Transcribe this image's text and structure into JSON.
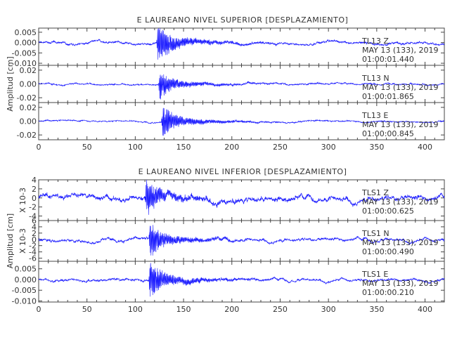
{
  "chart_data": [
    {
      "type": "line",
      "title": "E LAUREANO NIVEL SUPERIOR [DESPLAZAMIENTO]",
      "ylabel": "Amplitud [cm]",
      "xlim": [
        0,
        420
      ],
      "xticks": [
        "0",
        "50",
        "100",
        "150",
        "200",
        "250",
        "300",
        "350",
        "400"
      ],
      "series_color": "#1a1aff",
      "panels": [
        {
          "channel": "TL13  Z",
          "date": "MAY 13 (133), 2019",
          "time": "01:00:01.440",
          "ylim": [
            -0.011,
            0.007
          ],
          "yticks": [
            "0.005",
            "0.000",
            "-0.005",
            "-0.010"
          ],
          "ytick_values": [
            0.005,
            0.0,
            -0.005,
            -0.01
          ],
          "event_onset": 122,
          "peak_amplitude": 0.0095,
          "noise_amplitude": 0.0006
        },
        {
          "channel": "TL13  N",
          "date": "MAY 13 (133), 2019",
          "time": "01:00:01.865",
          "ylim": [
            -0.027,
            0.027
          ],
          "yticks": [
            "0.02",
            "0.00",
            "-0.02"
          ],
          "ytick_values": [
            0.02,
            0.0,
            -0.02
          ],
          "event_onset": 124,
          "peak_amplitude": 0.02,
          "noise_amplitude": 0.0012
        },
        {
          "channel": "TL13  E",
          "date": "MAY 13 (133), 2019",
          "time": "01:00:00.845",
          "ylim": [
            -0.027,
            0.027
          ],
          "yticks": [
            "0.02",
            "0.00",
            "-0.02"
          ],
          "ytick_values": [
            0.02,
            0.0,
            -0.02
          ],
          "event_onset": 127,
          "peak_amplitude": 0.024,
          "noise_amplitude": 0.001
        }
      ]
    },
    {
      "type": "line",
      "title": "E LAUREANO NIVEL INFERIOR [DESPLAZAMIENTO]",
      "ylabel": "Amplitud [cm]",
      "xlim": [
        0,
        420
      ],
      "xticks": [
        "0",
        "50",
        "100",
        "150",
        "200",
        "250",
        "300",
        "350",
        "400"
      ],
      "series_color": "#1a1aff",
      "panels": [
        {
          "channel": "TLS1  Z",
          "date": "MAY 13 (133), 2019",
          "time": "01:00:00.625",
          "scale_label": "X 10-3",
          "ylim": [
            -5,
            4
          ],
          "yticks": [
            "4",
            "2",
            "0",
            "-2",
            "-4"
          ],
          "ytick_values": [
            4,
            2,
            0,
            -2,
            -4
          ],
          "event_onset": 110,
          "peak_amplitude": 3.8,
          "noise_amplitude": 0.6
        },
        {
          "channel": "TLS1  N",
          "date": "MAY 13 (133), 2019",
          "time": "01:00:00.490",
          "scale_label": "X 10-3",
          "ylim": [
            -7,
            6
          ],
          "yticks": [
            "6",
            "4",
            "2",
            "0",
            "-2",
            "-4",
            "-6"
          ],
          "ytick_values": [
            6,
            4,
            2,
            0,
            -2,
            -4,
            -6
          ],
          "event_onset": 114,
          "peak_amplitude": 5.5,
          "noise_amplitude": 0.5
        },
        {
          "channel": "TLS1  E",
          "date": "MAY 13 (133), 2019",
          "time": "01:00:00.210",
          "ylim": [
            -0.0105,
            0.0085
          ],
          "yticks": [
            "0.005",
            "0.000",
            "-0.005",
            "-0.010"
          ],
          "ytick_values": [
            0.005,
            0.0,
            -0.005,
            -0.01
          ],
          "event_onset": 114,
          "peak_amplitude": 0.0095,
          "noise_amplitude": 0.0006
        }
      ]
    }
  ]
}
